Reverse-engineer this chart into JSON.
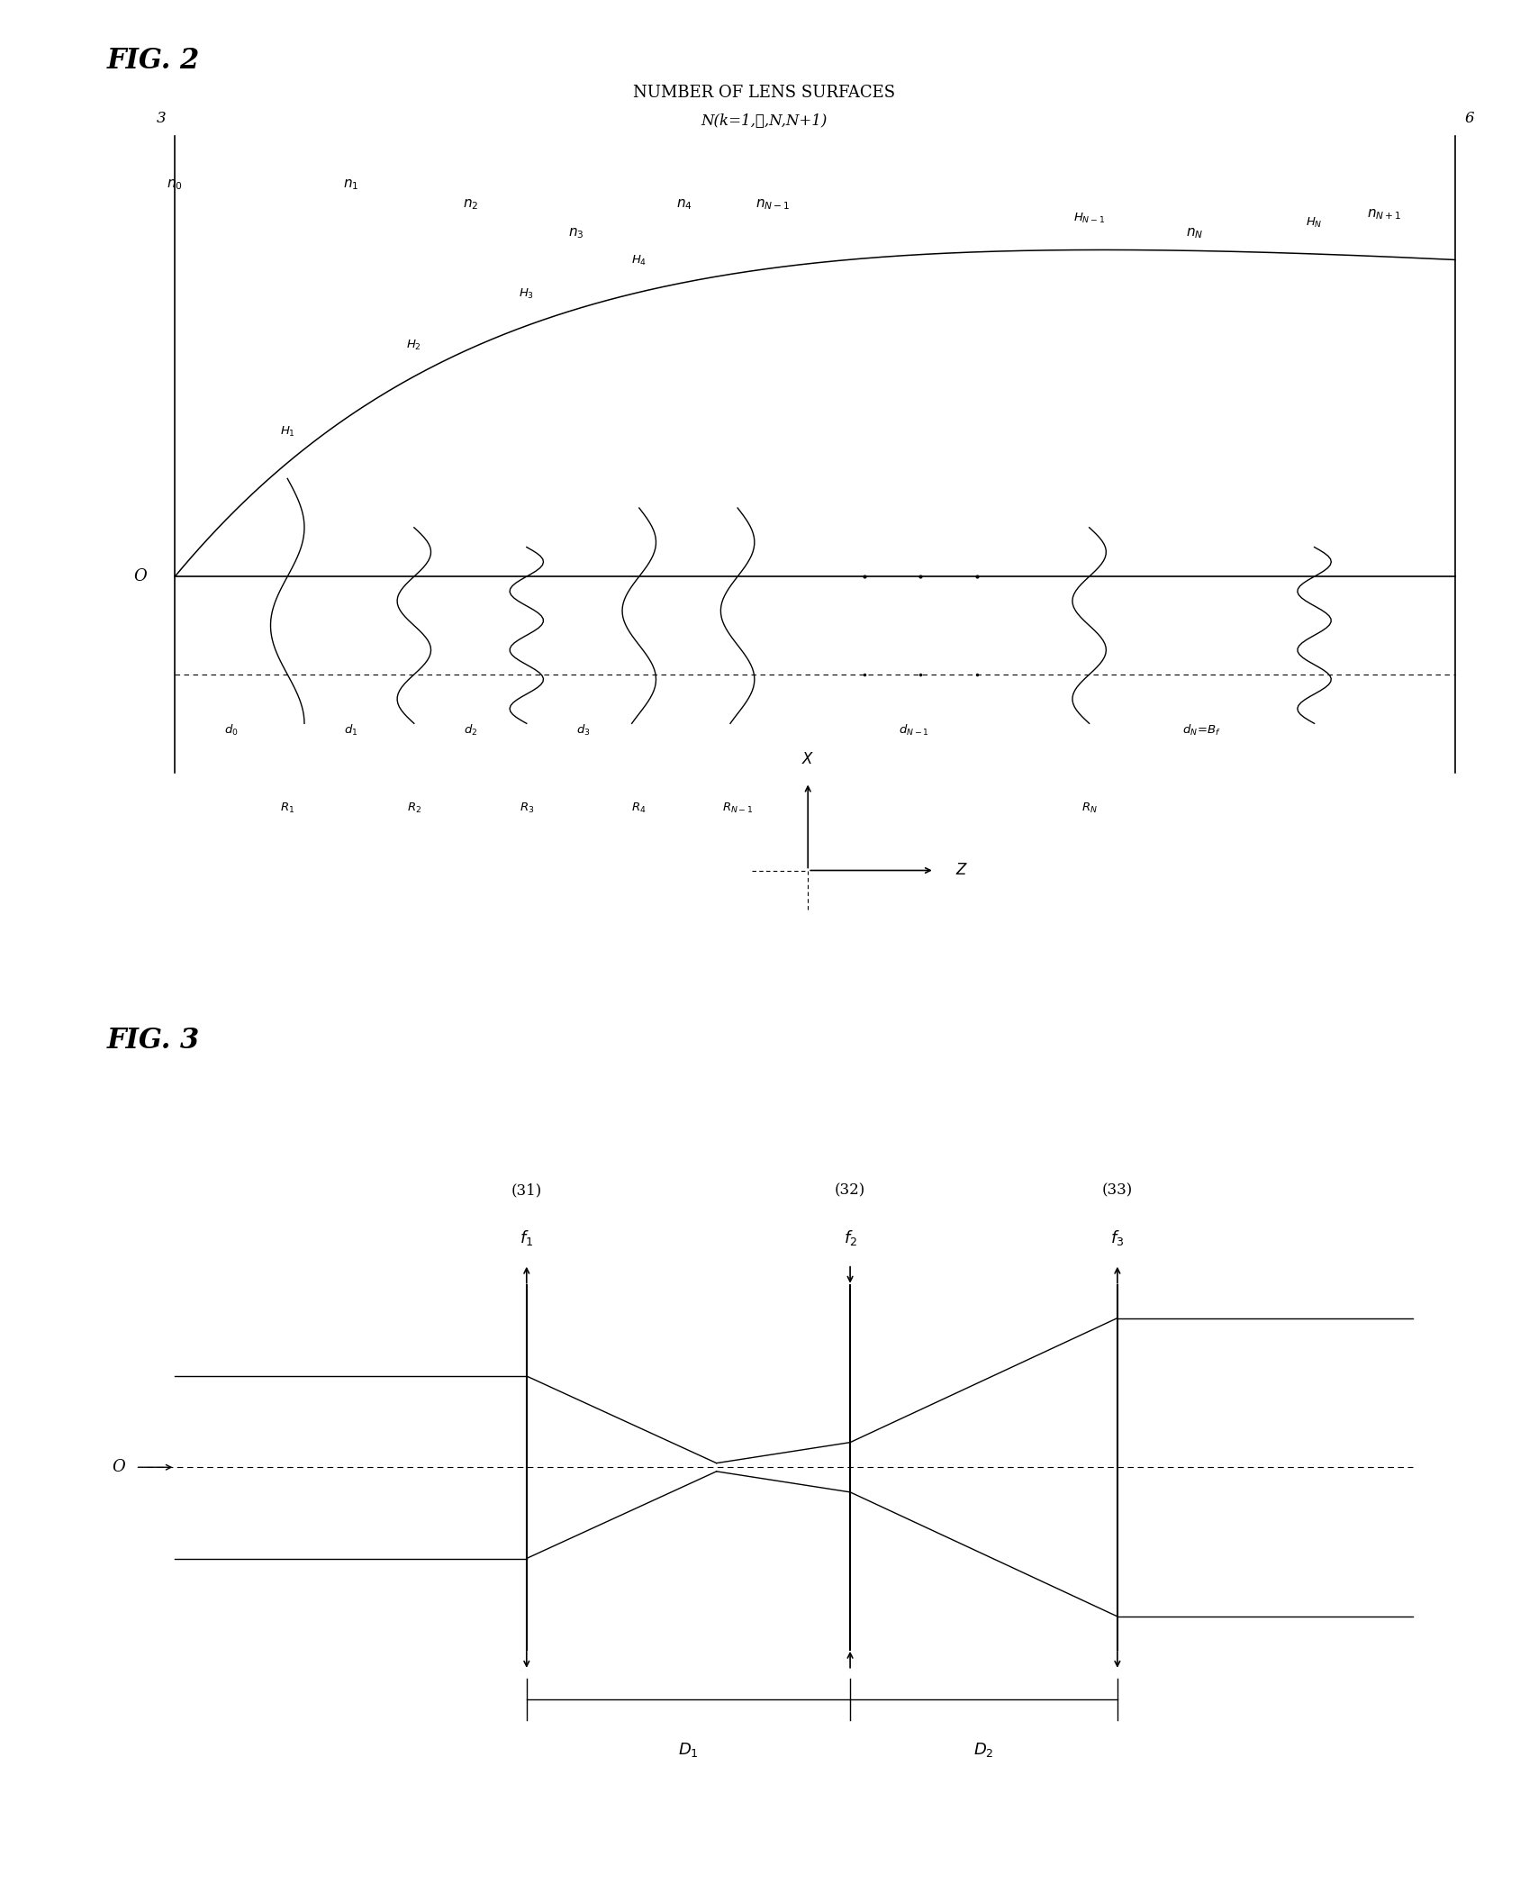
{
  "fig2_title": "FIG. 2",
  "fig3_title": "FIG. 3",
  "top_label1": "NUMBER OF LENS SURFACES",
  "top_label2": "N(k=1,⋯,N,N+1)",
  "bg_color": "#ffffff",
  "line_color": "#000000",
  "fig2_left_label": "3",
  "fig2_right_label": "6",
  "origin_label": "O",
  "n_labels_tex": [
    "$n_0$",
    "$n_1$",
    "$n_2$",
    "$n_3$",
    "$n_4$",
    "$n_{N-1}$",
    "$n_N$",
    "$n_{N+1}$"
  ],
  "H_labels_tex": [
    "$H_1$",
    "$H_2$",
    "$H_3$",
    "$H_4$",
    "$H_{N-1}$",
    "$H_N$"
  ],
  "d_labels_tex": [
    "$d_0$",
    "$d_1$",
    "$d_2$",
    "$d_3$",
    "$d_{N-1}$",
    "$d_N\\!=\\!B_f$"
  ],
  "R_labels_tex": [
    "$R_1$",
    "$R_2$",
    "$R_3$",
    "$R_4$",
    "$R_{N-1}$",
    "$R_N$"
  ],
  "lens31_label": "(31)",
  "lens32_label": "(32)",
  "lens33_label": "(33)",
  "f1_tex": "$f_1$",
  "f2_tex": "$f_2$",
  "f3_tex": "$f_3$",
  "D1_tex": "$D_1$",
  "D2_tex": "$D_2$",
  "O3_label": "O"
}
